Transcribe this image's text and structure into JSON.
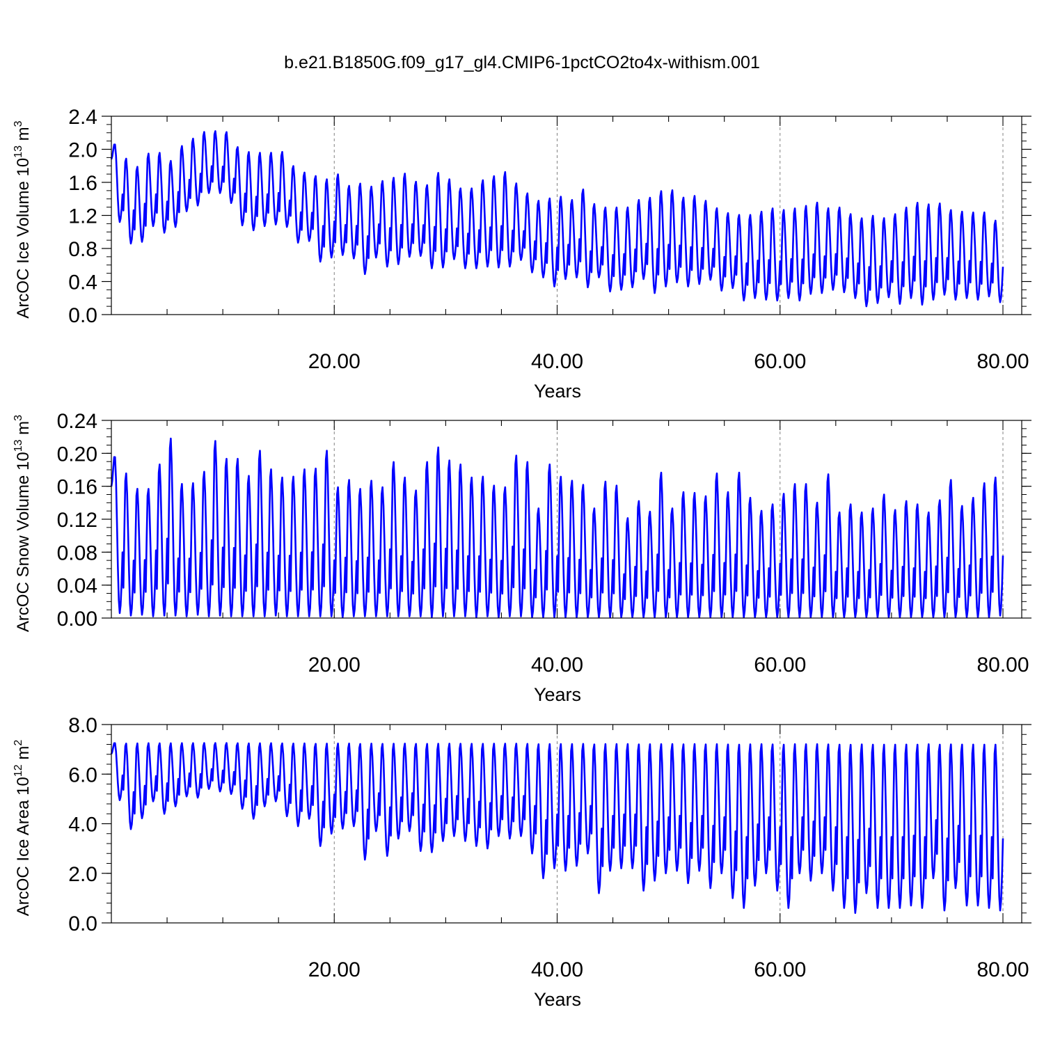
{
  "title": "b.e21.B1850G.f09_g17_gl4.CMIP6-1pctCO2to4x-withism.001",
  "colors": {
    "line": "#0000ff",
    "axis": "#000000",
    "grid": "#808080"
  },
  "chart_data": [
    {
      "type": "line",
      "xlabel": "Years",
      "ylabel": {
        "text": "ArcOC Ice Volume 10",
        "exp": "13",
        "unit": " m",
        "unit_exp": "3"
      },
      "xlim": [
        0,
        81
      ],
      "ylim": [
        0,
        2.4
      ],
      "x_ticks": [
        20,
        40,
        60,
        80
      ],
      "x_tick_labels": [
        "20.00",
        "40.00",
        "60.00",
        "80.00"
      ],
      "x_minor_step": 5,
      "y_ticks": [
        0,
        0.4,
        0.8,
        1.2,
        1.6,
        2.0,
        2.4
      ],
      "y_tick_labels": [
        "0.0",
        "0.4",
        "0.8",
        "1.2",
        "1.6",
        "2.0",
        "2.4"
      ],
      "y_minor_step": 0.1,
      "grid": "dashed vertical at major x ticks",
      "series_shape": "monthly seasonal cycle, one peak and one trough per year",
      "x": [
        0,
        1,
        2,
        3,
        4,
        5,
        6,
        7,
        8,
        9,
        10,
        11,
        12,
        13,
        14,
        15,
        16,
        17,
        18,
        19,
        20,
        21,
        22,
        23,
        24,
        25,
        26,
        27,
        28,
        29,
        30,
        31,
        32,
        33,
        34,
        35,
        36,
        37,
        38,
        39,
        40,
        41,
        42,
        43,
        44,
        45,
        46,
        47,
        48,
        49,
        50,
        51,
        52,
        53,
        54,
        55,
        56,
        57,
        58,
        59,
        60,
        61,
        62,
        63,
        64,
        65,
        66,
        67,
        68,
        69,
        70,
        71,
        72,
        73,
        74,
        75,
        76,
        77,
        78,
        79
      ],
      "annual_max": [
        2.07,
        1.9,
        1.8,
        1.96,
        1.97,
        1.87,
        2.05,
        2.14,
        2.22,
        2.23,
        2.22,
        2.04,
        1.98,
        1.97,
        1.97,
        1.98,
        1.81,
        1.73,
        1.69,
        1.65,
        1.71,
        1.57,
        1.6,
        1.56,
        1.63,
        1.67,
        1.72,
        1.62,
        1.58,
        1.73,
        1.65,
        1.54,
        1.54,
        1.64,
        1.69,
        1.74,
        1.6,
        1.48,
        1.39,
        1.42,
        1.44,
        1.4,
        1.53,
        1.35,
        1.31,
        1.31,
        1.31,
        1.4,
        1.43,
        1.51,
        1.52,
        1.43,
        1.45,
        1.39,
        1.3,
        1.24,
        1.22,
        1.22,
        1.26,
        1.3,
        1.28,
        1.3,
        1.33,
        1.37,
        1.3,
        1.31,
        1.23,
        1.18,
        1.21,
        1.18,
        1.23,
        1.31,
        1.37,
        1.35,
        1.36,
        1.28,
        1.26,
        1.25,
        1.25,
        1.15
      ],
      "annual_min": [
        1.12,
        0.86,
        0.88,
        1.07,
        0.99,
        1.06,
        1.25,
        1.32,
        1.47,
        1.47,
        1.35,
        1.08,
        1.02,
        1.07,
        1.09,
        1.06,
        0.87,
        0.89,
        0.64,
        0.69,
        0.72,
        0.68,
        0.49,
        0.69,
        0.58,
        0.61,
        0.7,
        0.71,
        0.56,
        0.57,
        0.67,
        0.56,
        0.56,
        0.58,
        0.57,
        0.58,
        0.66,
        0.51,
        0.45,
        0.34,
        0.43,
        0.45,
        0.33,
        0.45,
        0.28,
        0.3,
        0.33,
        0.43,
        0.26,
        0.34,
        0.39,
        0.34,
        0.37,
        0.42,
        0.29,
        0.32,
        0.17,
        0.2,
        0.18,
        0.17,
        0.2,
        0.17,
        0.25,
        0.26,
        0.3,
        0.27,
        0.2,
        0.1,
        0.14,
        0.21,
        0.13,
        0.2,
        0.12,
        0.18,
        0.24,
        0.18,
        0.2,
        0.18,
        0.22,
        0.15
      ]
    },
    {
      "type": "line",
      "xlabel": "Years",
      "ylabel": {
        "text": "ArcOC Snow Volume 10",
        "exp": "13",
        "unit": " m",
        "unit_exp": "3"
      },
      "xlim": [
        0,
        81
      ],
      "ylim": [
        0,
        0.24
      ],
      "x_ticks": [
        20,
        40,
        60,
        80
      ],
      "x_tick_labels": [
        "20.00",
        "40.00",
        "60.00",
        "80.00"
      ],
      "x_minor_step": 5,
      "y_ticks": [
        0,
        0.04,
        0.08,
        0.12,
        0.16,
        0.2,
        0.24
      ],
      "y_tick_labels": [
        "0.00",
        "0.04",
        "0.08",
        "0.12",
        "0.16",
        "0.20",
        "0.24"
      ],
      "y_minor_step": 0.01,
      "grid": "dashed vertical at major x ticks",
      "series_shape": "monthly seasonal cycle, one peak and one trough per year",
      "x": [
        0,
        1,
        2,
        3,
        4,
        5,
        6,
        7,
        8,
        9,
        10,
        11,
        12,
        13,
        14,
        15,
        16,
        17,
        18,
        19,
        20,
        21,
        22,
        23,
        24,
        25,
        26,
        27,
        28,
        29,
        30,
        31,
        32,
        33,
        34,
        35,
        36,
        37,
        38,
        39,
        40,
        41,
        42,
        43,
        44,
        45,
        46,
        47,
        48,
        49,
        50,
        51,
        52,
        53,
        54,
        55,
        56,
        57,
        58,
        59,
        60,
        61,
        62,
        63,
        64,
        65,
        66,
        67,
        68,
        69,
        70,
        71,
        72,
        73,
        74,
        75,
        76,
        77,
        78,
        79
      ],
      "annual_max": [
        0.198,
        0.178,
        0.159,
        0.159,
        0.189,
        0.221,
        0.165,
        0.166,
        0.18,
        0.218,
        0.196,
        0.196,
        0.175,
        0.206,
        0.183,
        0.173,
        0.174,
        0.183,
        0.184,
        0.206,
        0.161,
        0.17,
        0.159,
        0.169,
        0.161,
        0.192,
        0.173,
        0.157,
        0.192,
        0.21,
        0.194,
        0.189,
        0.173,
        0.174,
        0.163,
        0.161,
        0.2,
        0.192,
        0.135,
        0.189,
        0.174,
        0.169,
        0.164,
        0.135,
        0.168,
        0.163,
        0.123,
        0.144,
        0.131,
        0.179,
        0.135,
        0.155,
        0.154,
        0.15,
        0.178,
        0.155,
        0.179,
        0.148,
        0.132,
        0.14,
        0.153,
        0.165,
        0.165,
        0.142,
        0.177,
        0.13,
        0.14,
        0.13,
        0.135,
        0.152,
        0.133,
        0.144,
        0.14,
        0.13,
        0.145,
        0.17,
        0.138,
        0.148,
        0.166,
        0.173
      ],
      "annual_min": [
        0.006,
        0.003,
        0.004,
        0.002,
        0.003,
        0.003,
        0.002,
        0.004,
        0.002,
        0.003,
        0.002,
        0.002,
        0.002,
        0.002,
        0.003,
        0.002,
        0.002,
        0.002,
        0.002,
        0.002,
        0.001,
        0.002,
        0.002,
        0.002,
        0.002,
        0.002,
        0.002,
        0.002,
        0.001,
        0.002,
        0.002,
        0.002,
        0.001,
        0.002,
        0.001,
        0.002,
        0.002,
        0.001,
        0.001,
        0.001,
        0.001,
        0.001,
        0.001,
        0.001,
        0.001,
        0.001,
        0.001,
        0.001,
        0.001,
        0.001,
        0.001,
        0.001,
        0.001,
        0.001,
        0.001,
        0.001,
        0.001,
        0.001,
        0.001,
        0.001,
        0.001,
        0.001,
        0.001,
        0.001,
        0.001,
        0.001,
        0.001,
        0.001,
        0.001,
        0.001,
        0.001,
        0.001,
        0.001,
        0.001,
        0.001,
        0.001,
        0.001,
        0.001,
        0.001,
        0.003
      ]
    },
    {
      "type": "line",
      "xlabel": "Years",
      "ylabel": {
        "text": "ArcOC Ice Area 10",
        "exp": "12",
        "unit": " m",
        "unit_exp": "2"
      },
      "xlim": [
        0,
        81
      ],
      "ylim": [
        0,
        8.0
      ],
      "x_ticks": [
        20,
        40,
        60,
        80
      ],
      "x_tick_labels": [
        "20.00",
        "40.00",
        "60.00",
        "80.00"
      ],
      "x_minor_step": 5,
      "y_ticks": [
        0,
        2,
        4,
        6,
        8
      ],
      "y_tick_labels": [
        "0.0",
        "2.0",
        "4.0",
        "6.0",
        "8.0"
      ],
      "y_minor_step": 0.4,
      "grid": "dashed vertical at major x ticks",
      "series_shape": "monthly seasonal cycle, one peak and one trough per year",
      "x": [
        0,
        1,
        2,
        3,
        4,
        5,
        6,
        7,
        8,
        9,
        10,
        11,
        12,
        13,
        14,
        15,
        16,
        17,
        18,
        19,
        20,
        21,
        22,
        23,
        24,
        25,
        26,
        27,
        28,
        29,
        30,
        31,
        32,
        33,
        34,
        35,
        36,
        37,
        38,
        39,
        40,
        41,
        42,
        43,
        44,
        45,
        46,
        47,
        48,
        49,
        50,
        51,
        52,
        53,
        54,
        55,
        56,
        57,
        58,
        59,
        60,
        61,
        62,
        63,
        64,
        65,
        66,
        67,
        68,
        69,
        70,
        71,
        72,
        73,
        74,
        75,
        76,
        77,
        78,
        79
      ],
      "annual_max": [
        7.28,
        7.28,
        7.28,
        7.28,
        7.28,
        7.28,
        7.28,
        7.28,
        7.28,
        7.28,
        7.28,
        7.28,
        7.28,
        7.28,
        7.28,
        7.28,
        7.28,
        7.28,
        7.28,
        7.28,
        7.28,
        7.28,
        7.28,
        7.28,
        7.28,
        7.28,
        7.28,
        7.28,
        7.28,
        7.28,
        7.28,
        7.28,
        7.28,
        7.28,
        7.28,
        7.28,
        7.28,
        7.28,
        7.28,
        7.28,
        7.28,
        7.28,
        7.28,
        7.28,
        7.28,
        7.28,
        7.28,
        7.28,
        7.28,
        7.28,
        7.28,
        7.28,
        7.28,
        7.28,
        7.28,
        7.28,
        7.28,
        7.28,
        7.28,
        7.28,
        7.28,
        7.28,
        7.28,
        7.28,
        7.28,
        7.28,
        7.28,
        7.28,
        7.28,
        7.28,
        7.28,
        7.28,
        7.28,
        7.28,
        7.28,
        7.28,
        7.28,
        7.28,
        7.28,
        7.28
      ],
      "annual_min": [
        4.95,
        3.78,
        4.22,
        4.9,
        4.4,
        4.7,
        5.1,
        5.05,
        5.4,
        5.3,
        5.2,
        4.6,
        4.2,
        4.7,
        4.9,
        4.3,
        3.9,
        4.2,
        3.1,
        3.6,
        3.8,
        3.9,
        2.55,
        3.7,
        2.7,
        3.4,
        3.7,
        2.9,
        2.85,
        3.3,
        3.5,
        3.3,
        3.1,
        3.0,
        3.5,
        3.4,
        3.5,
        2.8,
        1.8,
        2.2,
        2.1,
        2.3,
        2.8,
        1.2,
        2.1,
        2.2,
        2.2,
        1.3,
        1.7,
        2.0,
        2.1,
        1.6,
        2.1,
        1.4,
        2.0,
        1.0,
        0.6,
        1.5,
        2.0,
        1.3,
        0.6,
        2.0,
        1.7,
        2.0,
        1.3,
        0.6,
        0.4,
        1.2,
        0.6,
        0.6,
        0.6,
        0.7,
        0.6,
        1.8,
        0.5,
        1.4,
        0.7,
        0.7,
        0.6,
        0.5
      ]
    }
  ]
}
